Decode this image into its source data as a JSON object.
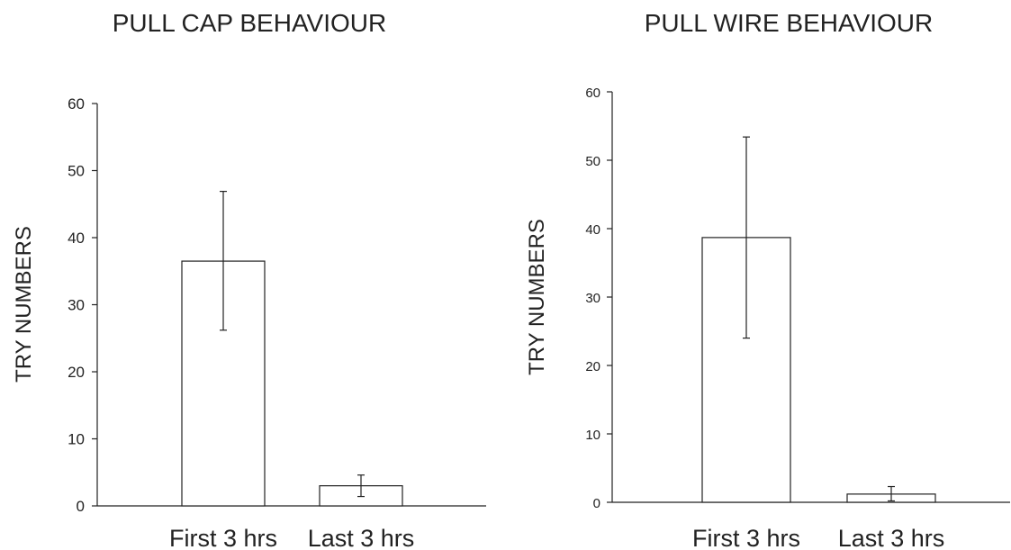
{
  "chart_data": [
    {
      "type": "bar",
      "title": "PULL CAP BEHAVIOUR",
      "xlabel": "",
      "ylabel": "TRY NUMBERS",
      "ylim": [
        0,
        60
      ],
      "yticks": [
        0,
        10,
        20,
        30,
        40,
        50,
        60
      ],
      "categories": [
        "First 3 hrs",
        "Last 3 hrs"
      ],
      "values": [
        36.5,
        3.0
      ],
      "error_low": [
        26.2,
        1.4
      ],
      "error_high": [
        46.9,
        4.6
      ],
      "grid": false,
      "colors": {
        "bar_fill": "#ffffff",
        "stroke": "#222222"
      }
    },
    {
      "type": "bar",
      "title": "PULL WIRE BEHAVIOUR",
      "xlabel": "",
      "ylabel": "TRY NUMBERS",
      "ylim": [
        0,
        60
      ],
      "yticks": [
        0,
        10,
        20,
        30,
        40,
        50,
        60
      ],
      "categories": [
        "First 3 hrs",
        "Last 3 hrs"
      ],
      "values": [
        38.7,
        1.2
      ],
      "error_low": [
        24.0,
        0.2
      ],
      "error_high": [
        53.4,
        2.3
      ],
      "grid": false,
      "colors": {
        "bar_fill": "#ffffff",
        "stroke": "#222222"
      }
    }
  ]
}
